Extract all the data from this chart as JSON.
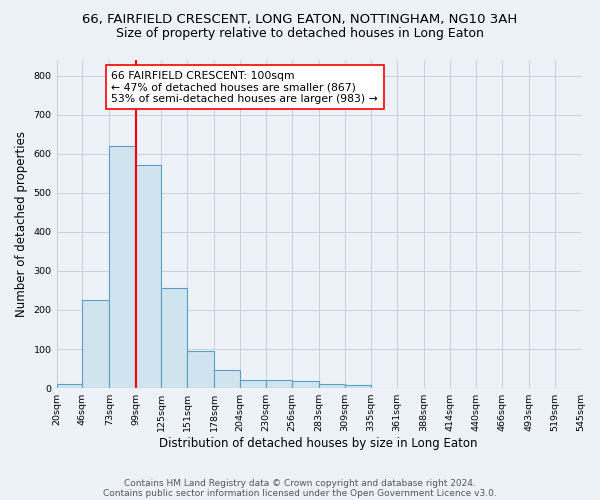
{
  "title1": "66, FAIRFIELD CRESCENT, LONG EATON, NOTTINGHAM, NG10 3AH",
  "title2": "Size of property relative to detached houses in Long Eaton",
  "xlabel": "Distribution of detached houses by size in Long Eaton",
  "ylabel": "Number of detached properties",
  "bin_edges": [
    20,
    46,
    73,
    99,
    125,
    151,
    178,
    204,
    230,
    256,
    283,
    309,
    335,
    361,
    388,
    414,
    440,
    466,
    493,
    519,
    545
  ],
  "bar_heights": [
    10,
    225,
    620,
    570,
    255,
    95,
    47,
    20,
    20,
    17,
    10,
    8,
    0,
    0,
    0,
    0,
    0,
    0,
    0,
    0
  ],
  "bar_color": "#d0e4f0",
  "bar_edgecolor": "#5b9fc0",
  "tick_labels": [
    "20sqm",
    "46sqm",
    "73sqm",
    "99sqm",
    "125sqm",
    "151sqm",
    "178sqm",
    "204sqm",
    "230sqm",
    "256sqm",
    "283sqm",
    "309sqm",
    "335sqm",
    "361sqm",
    "388sqm",
    "414sqm",
    "440sqm",
    "466sqm",
    "493sqm",
    "519sqm",
    "545sqm"
  ],
  "red_line_x": 100,
  "ylim": [
    0,
    840
  ],
  "ann_line1": "66 FAIRFIELD CRESCENT: 100sqm",
  "ann_line2": "← 47% of detached houses are smaller (867)",
  "ann_line3": "53% of semi-detached houses are larger (983) →",
  "footnote1": "Contains HM Land Registry data © Crown copyright and database right 2024.",
  "footnote2": "Contains public sector information licensed under the Open Government Licence v3.0.",
  "bg_color": "#edf2f8",
  "plot_bg_color": "#edf2f8",
  "grid_color": "#c8d0dc",
  "title1_fontsize": 9.5,
  "title2_fontsize": 9,
  "xlabel_fontsize": 8.5,
  "ylabel_fontsize": 8.5,
  "tick_fontsize": 6.8,
  "ann_fontsize": 7.8,
  "footnote_fontsize": 6.5
}
